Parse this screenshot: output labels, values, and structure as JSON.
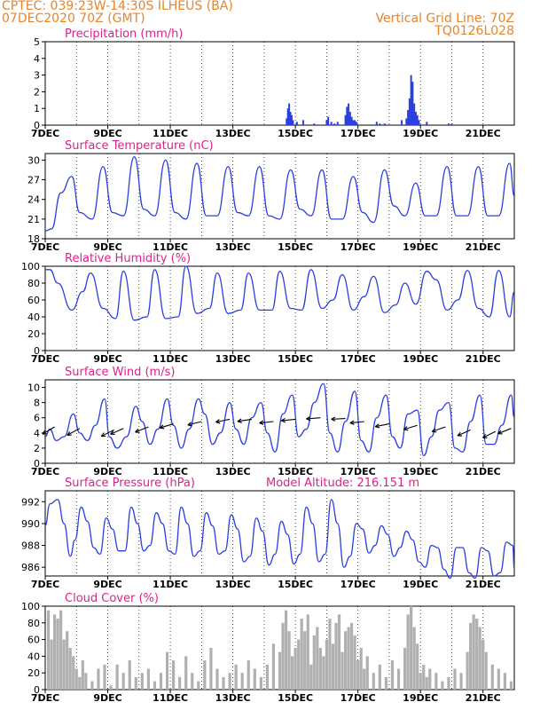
{
  "header": {
    "line1_left": "CPTEC:   039:23W-14:30S   ILHEUS (BA)",
    "line2_left": "07DEC2020 70Z (GMT)",
    "line1_right": "Vertical Grid Line: 70Z",
    "line2_right": "TQ0126L028"
  },
  "colors": {
    "header": "#e8842a",
    "title": "#e0208a",
    "line": "#2b3fe0",
    "bar_precip": "#2b3fe0",
    "bar_cloud": "#b0b0b0",
    "wind_arrow": "#000000"
  },
  "x_axis": {
    "day_start": 7,
    "day_end": 22,
    "tick_labels": [
      "7DEC",
      "9DEC",
      "11DEC",
      "13DEC",
      "15DEC",
      "17DEC",
      "19DEC",
      "21DEC"
    ],
    "tick_days": [
      7,
      9,
      11,
      13,
      15,
      17,
      19,
      21
    ]
  },
  "chart_data": [
    {
      "type": "bar",
      "title": "Precipitation (mm/h)",
      "ylim": [
        0,
        5
      ],
      "yticks": [
        "0",
        "1",
        "2",
        "3",
        "4",
        "5"
      ],
      "ytick_values": [
        0,
        1,
        2,
        3,
        4,
        5
      ],
      "x_days": [
        14.72,
        14.76,
        14.8,
        14.84,
        14.88,
        14.92,
        15.05,
        15.25,
        15.6,
        16.0,
        16.05,
        16.15,
        16.25,
        16.35,
        16.6,
        16.65,
        16.7,
        16.75,
        16.8,
        16.85,
        16.9,
        16.95,
        17.6,
        17.7,
        17.85,
        18.4,
        18.55,
        18.6,
        18.65,
        18.7,
        18.75,
        18.8,
        18.85,
        18.9,
        18.95,
        19.2,
        19.9,
        20.0
      ],
      "values": [
        0.4,
        1.0,
        1.3,
        0.8,
        0.6,
        0.3,
        0.2,
        0.3,
        0.1,
        0.3,
        0.5,
        0.2,
        0.1,
        0.2,
        0.6,
        1.1,
        1.3,
        0.8,
        0.5,
        0.3,
        0.3,
        0.2,
        0.2,
        0.1,
        0.1,
        0.3,
        0.4,
        0.9,
        1.6,
        3.0,
        2.6,
        1.3,
        0.8,
        0.6,
        0.3,
        0.2,
        0.1,
        0.1
      ]
    },
    {
      "type": "line",
      "title": "Surface Temperature (nC)",
      "ylim": [
        18,
        31
      ],
      "yticks": [
        "18",
        "21",
        "24",
        "27",
        "30"
      ],
      "ytick_values": [
        18,
        21,
        24,
        27,
        30
      ],
      "x_days": [
        7.0,
        7.2,
        7.5,
        7.85,
        8.1,
        8.5,
        8.85,
        9.15,
        9.5,
        9.85,
        10.15,
        10.5,
        10.85,
        11.15,
        11.5,
        11.85,
        12.15,
        12.5,
        12.85,
        13.15,
        13.5,
        13.85,
        14.15,
        14.5,
        14.85,
        15.15,
        15.5,
        15.85,
        16.15,
        16.5,
        16.85,
        17.15,
        17.5,
        17.85,
        18.15,
        18.5,
        18.85,
        19.15,
        19.5,
        19.85,
        20.15,
        20.5,
        20.85,
        21.15,
        21.5,
        21.85,
        22.0
      ],
      "values": [
        19.2,
        19.5,
        25.0,
        27.5,
        22.0,
        21.0,
        29.0,
        22.0,
        21.5,
        30.5,
        22.5,
        21.5,
        30.0,
        22.0,
        21.0,
        29.5,
        21.5,
        21.5,
        29.0,
        22.0,
        21.5,
        29.0,
        21.5,
        21.0,
        28.5,
        22.5,
        21.5,
        28.5,
        21.0,
        21.0,
        27.5,
        22.0,
        20.5,
        28.5,
        23.0,
        21.5,
        26.5,
        21.5,
        21.5,
        29.0,
        21.5,
        21.5,
        29.0,
        21.5,
        21.5,
        29.5,
        24.5
      ]
    },
    {
      "type": "line",
      "title": "Relative Humidity (%)",
      "ylim": [
        0,
        100
      ],
      "yticks": [
        "0",
        "20",
        "40",
        "60",
        "80",
        "100"
      ],
      "ytick_values": [
        0,
        20,
        40,
        60,
        80,
        100
      ],
      "x_days": [
        7.0,
        7.15,
        7.4,
        7.85,
        8.2,
        8.45,
        8.85,
        9.25,
        9.5,
        9.85,
        10.25,
        10.5,
        10.85,
        11.25,
        11.5,
        11.85,
        12.25,
        12.5,
        12.85,
        13.25,
        13.5,
        13.85,
        14.25,
        14.5,
        14.85,
        15.2,
        15.5,
        15.85,
        16.2,
        16.5,
        16.85,
        17.2,
        17.5,
        17.85,
        18.2,
        18.5,
        18.85,
        19.2,
        19.5,
        19.85,
        20.2,
        20.5,
        20.85,
        21.2,
        21.5,
        21.85,
        22.0
      ],
      "values": [
        96,
        96,
        80,
        48,
        70,
        92,
        50,
        38,
        94,
        36,
        40,
        96,
        38,
        40,
        100,
        44,
        50,
        92,
        44,
        48,
        92,
        48,
        48,
        94,
        50,
        48,
        96,
        50,
        60,
        90,
        48,
        64,
        88,
        45,
        54,
        80,
        55,
        94,
        84,
        48,
        60,
        95,
        50,
        40,
        95,
        40,
        70
      ]
    },
    {
      "type": "line",
      "title": "Surface Wind (m/s)",
      "ylim": [
        0,
        11
      ],
      "yticks": [
        "0",
        "2",
        "4",
        "6",
        "8",
        "10"
      ],
      "ytick_values": [
        0,
        2,
        4,
        6,
        8,
        10
      ],
      "x_days": [
        7.0,
        7.15,
        7.35,
        7.6,
        7.9,
        8.1,
        8.35,
        8.6,
        8.9,
        9.05,
        9.3,
        9.6,
        9.9,
        10.1,
        10.35,
        10.6,
        10.9,
        11.1,
        11.35,
        11.6,
        11.9,
        12.1,
        12.35,
        12.6,
        12.9,
        13.1,
        13.35,
        13.6,
        13.9,
        14.1,
        14.35,
        14.6,
        14.9,
        15.1,
        15.35,
        15.6,
        15.9,
        16.1,
        16.35,
        16.6,
        16.9,
        17.1,
        17.35,
        17.6,
        17.9,
        18.1,
        18.35,
        18.6,
        18.9,
        19.1,
        19.35,
        19.6,
        19.9,
        20.1,
        20.35,
        20.6,
        20.9,
        21.1,
        21.35,
        21.6,
        21.9,
        22.0
      ],
      "values": [
        3.5,
        4.5,
        3.0,
        3.5,
        6.5,
        4.0,
        3.0,
        5.0,
        8.5,
        3.5,
        2.0,
        3.5,
        7.5,
        5.5,
        2.5,
        4.5,
        8.5,
        5.0,
        2.0,
        4.5,
        8.5,
        6.5,
        2.5,
        4.0,
        8.0,
        4.5,
        2.5,
        6.0,
        8.0,
        4.0,
        1.5,
        6.5,
        9.0,
        3.5,
        4.5,
        8.0,
        10.5,
        4.0,
        1.5,
        5.5,
        9.5,
        3.0,
        1.5,
        6.0,
        9.0,
        3.5,
        2.0,
        6.5,
        7.0,
        1.0,
        3.5,
        7.0,
        8.0,
        2.0,
        1.5,
        5.5,
        9.0,
        2.5,
        2.5,
        5.0,
        9.0,
        6.0
      ],
      "vectors": [
        {
          "day": 7.3,
          "speed": 4.8,
          "u": -1.0,
          "v": -0.6
        },
        {
          "day": 8.1,
          "speed": 4.6,
          "u": -1.0,
          "v": -0.55
        },
        {
          "day": 9.2,
          "speed": 4.4,
          "u": -1.0,
          "v": -0.5
        },
        {
          "day": 9.5,
          "speed": 4.6,
          "u": -1.0,
          "v": -0.45
        },
        {
          "day": 10.3,
          "speed": 4.8,
          "u": -1.0,
          "v": -0.4
        },
        {
          "day": 11.1,
          "speed": 5.2,
          "u": -1.0,
          "v": -0.3
        },
        {
          "day": 12.0,
          "speed": 5.5,
          "u": -1.0,
          "v": -0.25
        },
        {
          "day": 12.9,
          "speed": 5.8,
          "u": -1.0,
          "v": -0.2
        },
        {
          "day": 13.6,
          "speed": 5.8,
          "u": -1.0,
          "v": -0.15
        },
        {
          "day": 14.3,
          "speed": 5.5,
          "u": -1.0,
          "v": -0.1
        },
        {
          "day": 15.0,
          "speed": 5.8,
          "u": -1.0,
          "v": -0.1
        },
        {
          "day": 15.8,
          "speed": 6.0,
          "u": -1.0,
          "v": -0.08
        },
        {
          "day": 16.6,
          "speed": 5.9,
          "u": -1.0,
          "v": -0.05
        },
        {
          "day": 17.2,
          "speed": 5.5,
          "u": -1.0,
          "v": -0.1
        },
        {
          "day": 18.0,
          "speed": 5.2,
          "u": -1.0,
          "v": -0.2
        },
        {
          "day": 18.9,
          "speed": 5.0,
          "u": -1.0,
          "v": -0.3
        },
        {
          "day": 19.8,
          "speed": 4.8,
          "u": -1.0,
          "v": -0.35
        },
        {
          "day": 20.6,
          "speed": 4.4,
          "u": -1.0,
          "v": -0.45
        },
        {
          "day": 21.4,
          "speed": 4.2,
          "u": -1.0,
          "v": -0.5
        },
        {
          "day": 21.9,
          "speed": 4.6,
          "u": -1.0,
          "v": -0.4
        }
      ]
    },
    {
      "type": "line",
      "title": "Surface Pressure (hPa)",
      "title_extra": "Model Altitude: 216.151  m",
      "ylim": [
        985.2,
        993
      ],
      "yticks": [
        "986",
        "988",
        "990",
        "992"
      ],
      "ytick_values": [
        986,
        988,
        990,
        992
      ],
      "x_days": [
        7.0,
        7.15,
        7.4,
        7.6,
        7.8,
        7.95,
        8.15,
        8.35,
        8.55,
        8.75,
        8.95,
        9.15,
        9.35,
        9.55,
        9.75,
        9.95,
        10.15,
        10.35,
        10.55,
        10.75,
        10.95,
        11.15,
        11.35,
        11.55,
        11.75,
        11.95,
        12.15,
        12.35,
        12.55,
        12.75,
        12.95,
        13.15,
        13.35,
        13.55,
        13.75,
        13.95,
        14.15,
        14.35,
        14.55,
        14.75,
        14.95,
        15.15,
        15.35,
        15.55,
        15.75,
        15.95,
        16.15,
        16.35,
        16.55,
        16.75,
        16.95,
        17.15,
        17.35,
        17.55,
        17.75,
        17.95,
        18.15,
        18.35,
        18.55,
        18.75,
        18.95,
        19.15,
        19.35,
        19.55,
        19.75,
        19.95,
        20.15,
        20.35,
        20.55,
        20.75,
        20.95,
        21.15,
        21.35,
        21.55,
        21.75,
        21.95,
        22.0
      ],
      "values": [
        989.8,
        991.8,
        992.2,
        990.0,
        987.0,
        988.5,
        991.5,
        990.2,
        987.8,
        987.2,
        990.5,
        989.5,
        987.5,
        987.5,
        991.5,
        990.0,
        987.5,
        988.0,
        991.0,
        990.0,
        987.5,
        987.2,
        991.5,
        990.0,
        987.0,
        987.5,
        991.0,
        989.8,
        987.2,
        987.5,
        990.8,
        989.5,
        986.5,
        987.0,
        990.5,
        989.3,
        986.2,
        987.2,
        990.2,
        989.0,
        986.3,
        987.2,
        991.5,
        990.0,
        986.5,
        987.2,
        992.2,
        990.0,
        986.0,
        987.0,
        990.0,
        989.5,
        987.3,
        988.0,
        989.8,
        989.0,
        987.0,
        987.8,
        989.3,
        988.5,
        986.5,
        986.0,
        988.0,
        987.8,
        985.8,
        985.0,
        987.8,
        987.8,
        985.5,
        985.0,
        987.8,
        987.5,
        985.2,
        985.5,
        988.3,
        988.0,
        985.8
      ]
    },
    {
      "type": "bar",
      "title": "Cloud Cover (%)",
      "ylim": [
        0,
        100
      ],
      "yticks": [
        "0",
        "20",
        "40",
        "60",
        "80",
        "100"
      ],
      "ytick_values": [
        0,
        20,
        40,
        60,
        80,
        100
      ],
      "x_days": [
        7.1,
        7.2,
        7.3,
        7.4,
        7.5,
        7.6,
        7.7,
        7.8,
        7.9,
        8.0,
        8.1,
        8.2,
        8.3,
        8.5,
        8.7,
        8.9,
        9.1,
        9.3,
        9.5,
        9.7,
        9.9,
        10.1,
        10.3,
        10.5,
        10.7,
        10.9,
        11.1,
        11.3,
        11.5,
        11.7,
        11.9,
        12.1,
        12.3,
        12.5,
        12.7,
        12.9,
        13.1,
        13.3,
        13.5,
        13.7,
        13.9,
        14.1,
        14.3,
        14.5,
        14.6,
        14.7,
        14.8,
        14.9,
        15.0,
        15.1,
        15.2,
        15.3,
        15.4,
        15.5,
        15.6,
        15.7,
        15.8,
        15.9,
        16.0,
        16.1,
        16.2,
        16.3,
        16.4,
        16.5,
        16.6,
        16.7,
        16.8,
        16.9,
        17.0,
        17.1,
        17.2,
        17.3,
        17.5,
        17.7,
        17.9,
        18.1,
        18.3,
        18.5,
        18.6,
        18.7,
        18.8,
        18.9,
        19.0,
        19.1,
        19.2,
        19.3,
        19.5,
        19.7,
        19.9,
        20.1,
        20.3,
        20.5,
        20.6,
        20.7,
        20.8,
        20.9,
        21.0,
        21.1,
        21.3,
        21.5,
        21.7,
        21.9
      ],
      "values": [
        95,
        60,
        90,
        85,
        95,
        60,
        70,
        50,
        40,
        25,
        15,
        35,
        20,
        10,
        25,
        30,
        5,
        30,
        20,
        35,
        15,
        20,
        25,
        10,
        20,
        45,
        35,
        15,
        40,
        20,
        10,
        35,
        50,
        25,
        15,
        20,
        30,
        20,
        35,
        25,
        15,
        30,
        55,
        45,
        80,
        95,
        70,
        40,
        50,
        60,
        85,
        70,
        90,
        30,
        65,
        75,
        50,
        40,
        60,
        85,
        55,
        80,
        90,
        45,
        70,
        75,
        80,
        65,
        35,
        50,
        25,
        40,
        20,
        30,
        15,
        35,
        25,
        50,
        90,
        100,
        75,
        55,
        20,
        30,
        15,
        25,
        20,
        10,
        15,
        25,
        20,
        45,
        80,
        90,
        85,
        75,
        60,
        45,
        30,
        25,
        20,
        10
      ]
    }
  ]
}
